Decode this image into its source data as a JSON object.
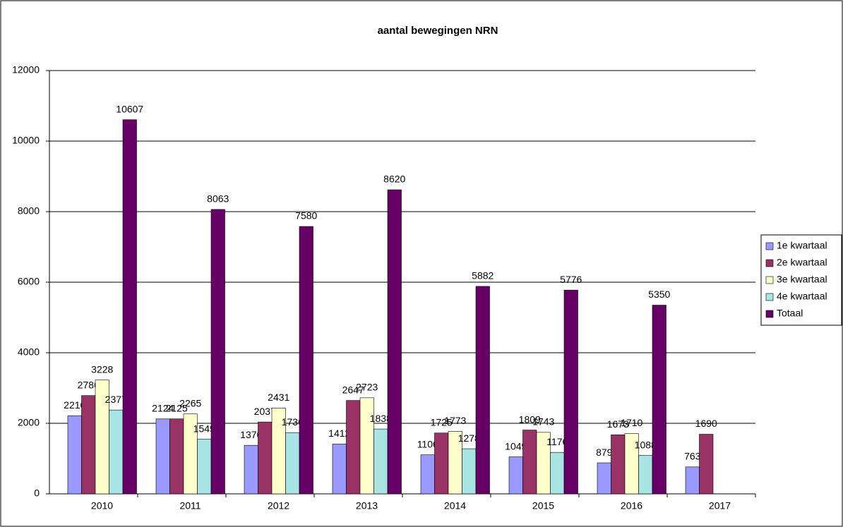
{
  "chart_data": {
    "type": "bar",
    "title": "aantal bewegingen NRN",
    "categories": [
      "2010",
      "2011",
      "2012",
      "2013",
      "2014",
      "2015",
      "2016",
      "2017"
    ],
    "series": [
      {
        "name": "1e kwartaal",
        "color": "#9999ff",
        "values": [
          2216,
          2124,
          1376,
          1412,
          1106,
          1049,
          879,
          763
        ]
      },
      {
        "name": "2e kwartaal",
        "color": "#993366",
        "values": [
          2786,
          2125,
          2037,
          2647,
          1725,
          1809,
          1673,
          1690
        ]
      },
      {
        "name": "3e kwartaal",
        "color": "#ffffcc",
        "values": [
          3228,
          2265,
          2431,
          2723,
          1773,
          1743,
          1710,
          null
        ]
      },
      {
        "name": "4e kwartaal",
        "color": "#a8e4e4",
        "values": [
          2377,
          1549,
          1736,
          1838,
          1278,
          1176,
          1088,
          null
        ]
      },
      {
        "name": "Totaal",
        "color": "#660066",
        "values": [
          10607,
          8063,
          7580,
          8620,
          5882,
          5776,
          5350,
          null
        ]
      }
    ],
    "ylim": [
      0,
      12000
    ],
    "yticks": [
      0,
      2000,
      4000,
      6000,
      8000,
      10000,
      12000
    ],
    "grid": true,
    "legend": "right"
  }
}
